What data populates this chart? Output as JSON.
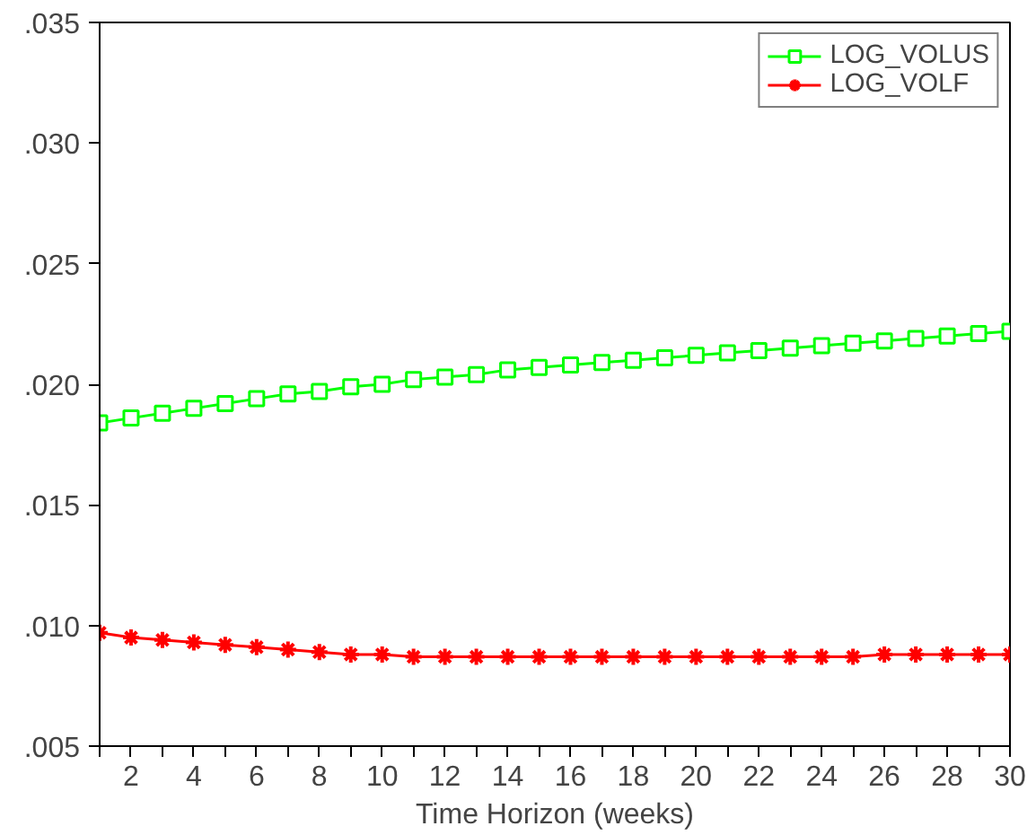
{
  "chart_data": {
    "type": "line",
    "xlabel": "Time Horizon (weeks)",
    "x": [
      1,
      2,
      3,
      4,
      5,
      6,
      7,
      8,
      9,
      10,
      11,
      12,
      13,
      14,
      15,
      16,
      17,
      18,
      19,
      20,
      21,
      22,
      23,
      24,
      25,
      26,
      27,
      28,
      29,
      30
    ],
    "series": [
      {
        "name": "LOG_VOLUS",
        "color": "#00ff00",
        "marker": "square",
        "values": [
          0.0184,
          0.0186,
          0.0188,
          0.019,
          0.0192,
          0.0194,
          0.0196,
          0.0197,
          0.0199,
          0.02,
          0.0202,
          0.0203,
          0.0204,
          0.0206,
          0.0207,
          0.0208,
          0.0209,
          0.021,
          0.0211,
          0.0212,
          0.0213,
          0.0214,
          0.0215,
          0.0216,
          0.0217,
          0.0218,
          0.0219,
          0.022,
          0.0221,
          0.0222
        ]
      },
      {
        "name": "LOG_VOLF",
        "color": "#ff0000",
        "marker": "cross",
        "values": [
          0.0097,
          0.0095,
          0.0094,
          0.0093,
          0.0092,
          0.0091,
          0.009,
          0.0089,
          0.0088,
          0.0088,
          0.0087,
          0.0087,
          0.0087,
          0.0087,
          0.0087,
          0.0087,
          0.0087,
          0.0087,
          0.0087,
          0.0087,
          0.0087,
          0.0087,
          0.0087,
          0.0087,
          0.0087,
          0.0088,
          0.0088,
          0.0088,
          0.0088,
          0.0088
        ]
      }
    ],
    "xlim": [
      1,
      30
    ],
    "xticks": [
      {
        "value": 1,
        "label": null
      },
      2,
      {
        "value": 3,
        "label": null
      },
      4,
      {
        "value": 5,
        "label": null
      },
      6,
      {
        "value": 7,
        "label": null
      },
      8,
      {
        "value": 9,
        "label": null
      },
      10,
      {
        "value": 11,
        "label": null
      },
      12,
      {
        "value": 13,
        "label": null
      },
      14,
      {
        "value": 15,
        "label": null
      },
      16,
      {
        "value": 17,
        "label": null
      },
      18,
      {
        "value": 19,
        "label": null
      },
      20,
      {
        "value": 21,
        "label": null
      },
      22,
      {
        "value": 23,
        "label": null
      },
      24,
      {
        "value": 25,
        "label": null
      },
      26,
      {
        "value": 27,
        "label": null
      },
      28,
      {
        "value": 29,
        "label": null
      },
      30
    ],
    "ylim": [
      0.005,
      0.035
    ],
    "yticks": [
      {
        "value": 0.005,
        "label": ".005"
      },
      {
        "value": 0.01,
        "label": ".010"
      },
      {
        "value": 0.015,
        "label": ".015"
      },
      {
        "value": 0.02,
        "label": ".020"
      },
      {
        "value": 0.025,
        "label": ".025"
      },
      {
        "value": 0.03,
        "label": ".030"
      },
      {
        "value": 0.035,
        "label": ".035"
      }
    ],
    "grid": false,
    "legend": "top right",
    "line_style": "solid"
  }
}
